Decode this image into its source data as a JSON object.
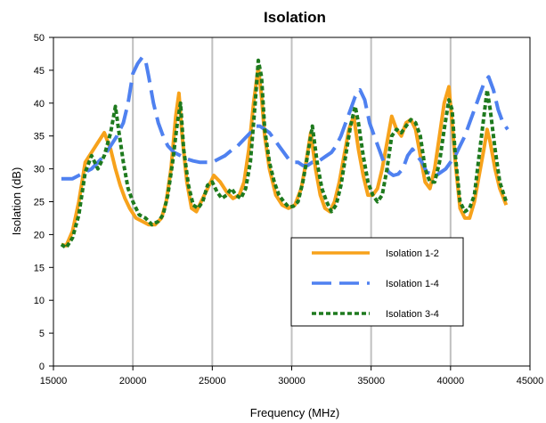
{
  "chart_data": {
    "type": "line",
    "title": "Isolation",
    "xlabel": "Frequency (MHz)",
    "ylabel": "Isolation (dB)",
    "xlim": [
      15000,
      45000
    ],
    "ylim": [
      0,
      50
    ],
    "xticks": [
      15000,
      20000,
      25000,
      30000,
      35000,
      40000,
      45000
    ],
    "yticks": [
      0,
      5,
      10,
      15,
      20,
      25,
      30,
      35,
      40,
      45,
      50
    ],
    "grid": "vertical",
    "legend_position": "bottom-right",
    "series": [
      {
        "name": "Isolation 1-2",
        "color": "#f7a21b",
        "dash": "solid",
        "x": [
          15500,
          15800,
          16200,
          16600,
          17000,
          17400,
          17800,
          18200,
          18600,
          18900,
          19200,
          19500,
          19800,
          20200,
          20600,
          21000,
          21400,
          21800,
          22100,
          22400,
          22700,
          22900,
          23100,
          23400,
          23700,
          24000,
          24300,
          24700,
          25100,
          25500,
          25900,
          26300,
          26700,
          27000,
          27300,
          27600,
          27900,
          28100,
          28300,
          28600,
          29000,
          29400,
          29800,
          30200,
          30600,
          30900,
          31200,
          31500,
          31800,
          32100,
          32400,
          32700,
          33000,
          33300,
          33600,
          33900,
          34200,
          34500,
          34800,
          35100,
          35400,
          35700,
          36000,
          36300,
          36600,
          36900,
          37200,
          37500,
          37800,
          38100,
          38400,
          38700,
          39000,
          39300,
          39600,
          39900,
          40100,
          40300,
          40600,
          40900,
          41200,
          41500,
          41800,
          42100,
          42300,
          42500,
          42800,
          43100,
          43500
        ],
        "values": [
          18.5,
          18.3,
          20.5,
          25,
          31,
          32.5,
          34,
          35.5,
          33,
          30,
          27.5,
          25.5,
          24,
          22.5,
          22,
          21.5,
          21.5,
          22.5,
          25,
          30,
          38,
          41.5,
          35,
          28,
          24,
          23.5,
          25,
          27,
          29,
          28,
          26.5,
          25.5,
          26,
          28,
          33,
          40,
          45.5,
          41,
          35,
          30,
          26,
          24.5,
          24,
          24.5,
          27,
          31,
          35.5,
          30,
          26,
          24,
          23.5,
          25,
          28,
          32,
          36,
          38,
          33,
          29,
          26,
          26,
          27,
          30,
          34,
          38,
          36,
          35,
          37,
          37.5,
          36,
          32,
          28,
          27,
          30,
          35,
          40,
          42.5,
          37,
          31,
          24,
          22.5,
          22.5,
          25,
          29,
          33,
          36,
          34,
          30,
          27,
          24.5
        ]
      },
      {
        "name": "Isolation 1-4",
        "color": "#4f81f0",
        "dash": "long",
        "x": [
          15500,
          15800,
          16200,
          16600,
          17000,
          17400,
          17800,
          18200,
          18600,
          19000,
          19400,
          19700,
          20000,
          20300,
          20600,
          20800,
          21000,
          21300,
          21600,
          21900,
          22200,
          22600,
          23000,
          23400,
          23800,
          24200,
          24600,
          25000,
          25400,
          25800,
          26200,
          26600,
          27000,
          27400,
          27700,
          28000,
          28300,
          28600,
          28900,
          29200,
          29500,
          29800,
          30100,
          30400,
          30700,
          31000,
          31300,
          31600,
          31900,
          32200,
          32500,
          32800,
          33100,
          33400,
          33700,
          34000,
          34300,
          34600,
          34900,
          35200,
          35500,
          35800,
          36100,
          36400,
          36700,
          37000,
          37300,
          37600,
          37900,
          38200,
          38500,
          38800,
          39100,
          39400,
          39700,
          40000,
          40300,
          40600,
          40900,
          41200,
          41500,
          41800,
          42100,
          42400,
          42700,
          43000,
          43300,
          43600
        ],
        "values": [
          28.5,
          28.5,
          28.5,
          29,
          29.5,
          30,
          31,
          32,
          33.5,
          35,
          37,
          40,
          44.5,
          46,
          47,
          46.5,
          44,
          40,
          37,
          35,
          33.5,
          32.5,
          32,
          31.5,
          31.2,
          31,
          31,
          31,
          31.5,
          32,
          32.8,
          33.5,
          34.5,
          35.5,
          36.5,
          36.5,
          36,
          35.5,
          34.5,
          33.5,
          32.5,
          31.5,
          31,
          31,
          30.5,
          30.5,
          31,
          31,
          31.5,
          32,
          32.5,
          33.5,
          35,
          37,
          39,
          41,
          42,
          40.5,
          37,
          35,
          33,
          31,
          29.5,
          29,
          29.2,
          30,
          32,
          33,
          32,
          31,
          29.5,
          29.2,
          29,
          29.5,
          30,
          31,
          32,
          33.5,
          35,
          37,
          39,
          41,
          43,
          44,
          42,
          39,
          37,
          36
        ]
      },
      {
        "name": "Isolation 3-4",
        "color": "#1e7a1e",
        "dash": "dotted",
        "x": [
          15500,
          15800,
          16200,
          16600,
          17000,
          17400,
          17800,
          18200,
          18600,
          18900,
          19100,
          19400,
          19700,
          20000,
          20400,
          20800,
          21200,
          21600,
          21900,
          22200,
          22500,
          22800,
          23000,
          23200,
          23500,
          23800,
          24100,
          24400,
          24700,
          25000,
          25300,
          25600,
          25900,
          26200,
          26500,
          26800,
          27100,
          27400,
          27700,
          27900,
          28100,
          28300,
          28600,
          28900,
          29200,
          29500,
          29800,
          30100,
          30400,
          30700,
          31000,
          31300,
          31600,
          31900,
          32200,
          32500,
          32800,
          33100,
          33400,
          33700,
          34000,
          34200,
          34500,
          34800,
          35100,
          35400,
          35700,
          36000,
          36300,
          36600,
          36900,
          37200,
          37500,
          37800,
          38100,
          38400,
          38700,
          39000,
          39300,
          39600,
          39900,
          40100,
          40300,
          40600,
          40900,
          41200,
          41500,
          41800,
          42100,
          42300,
          42500,
          42800,
          43100,
          43500
        ],
        "values": [
          18.5,
          18,
          19.5,
          23,
          29.5,
          32,
          30,
          32,
          35.5,
          39.5,
          36,
          31,
          27,
          25,
          23,
          22.5,
          21.5,
          22,
          23,
          26,
          31,
          37,
          40,
          33,
          27.5,
          24.5,
          24,
          25,
          27.5,
          28,
          26.5,
          25.5,
          26,
          27,
          26,
          25.5,
          27,
          31,
          40,
          46.5,
          44,
          36,
          31,
          28,
          26,
          25,
          24.2,
          24.3,
          25,
          28,
          32,
          36.5,
          31,
          27,
          25,
          23.5,
          24.5,
          27.5,
          32,
          36.5,
          39.5,
          37,
          32,
          28,
          26,
          25,
          26,
          30,
          35,
          36,
          35.5,
          36.5,
          37.5,
          37,
          35,
          30,
          28,
          28,
          31,
          36,
          40.5,
          39,
          32,
          25,
          23.5,
          24,
          26,
          32,
          38,
          42,
          39,
          33,
          28,
          25
        ]
      }
    ]
  }
}
